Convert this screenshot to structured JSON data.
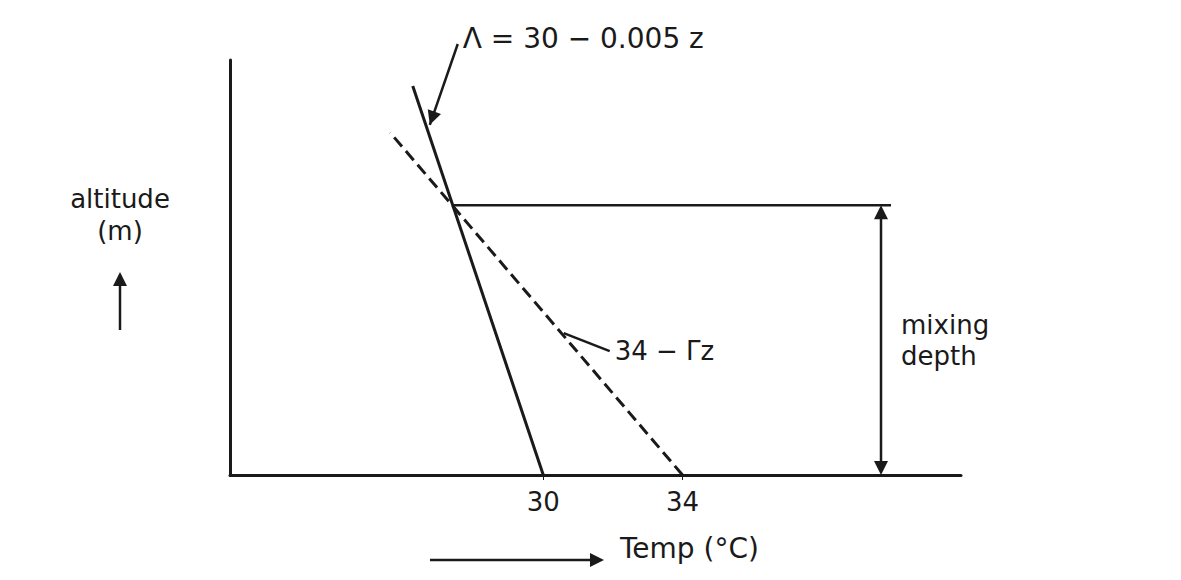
{
  "chart_data": {
    "type": "line",
    "x_label": "Temp (°C)",
    "y_label": "altitude (m)",
    "xlim": [
      21,
      42
    ],
    "xticks": [
      30,
      34
    ],
    "ylim": [
      0,
      800
    ],
    "tick_labels": "x",
    "grid": false,
    "series": [
      {
        "name": "Λ = 30 − 0.005 z",
        "color": "#1a1a1a",
        "line_style": "solid",
        "x": [
          30,
          26.25
        ],
        "values": [
          0,
          750
        ]
      },
      {
        "name": "34 − Γz",
        "color": "#1a1a1a",
        "line_style": "dashed",
        "x": [
          34,
          25.6
        ],
        "values": [
          0,
          660
        ]
      }
    ],
    "annotations": [
      {
        "text": "mixing depth",
        "value": 520
      }
    ]
  }
}
